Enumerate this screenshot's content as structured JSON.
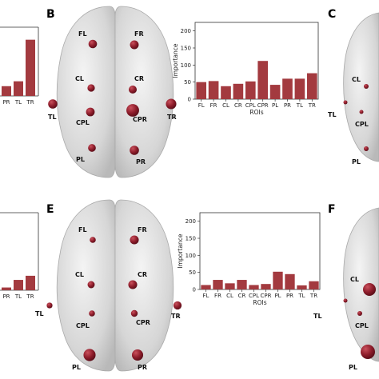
{
  "panels": {
    "B": "B",
    "C": "C",
    "E": "E",
    "F": "F"
  },
  "colors": {
    "bar": "#a33a3f",
    "node": "#8e1d2b",
    "brain": "#d9d9d9"
  },
  "chart_data": [
    {
      "id": "B-bar",
      "type": "bar",
      "categories": [
        "FL",
        "FR",
        "CL",
        "CR",
        "CPL",
        "CPR",
        "PL",
        "PR",
        "TL",
        "TR"
      ],
      "values": [
        50,
        53,
        38,
        45,
        52,
        112,
        42,
        60,
        60,
        76
      ],
      "xlabel": "ROIs",
      "ylabel": "Importance",
      "ylim": [
        0,
        225
      ],
      "yticks": [
        0,
        50,
        100,
        150,
        200
      ],
      "grid": false
    },
    {
      "id": "E-bar",
      "type": "bar",
      "categories": [
        "FL",
        "FR",
        "CL",
        "CR",
        "CPL",
        "CPR",
        "PL",
        "PR",
        "TL",
        "TR"
      ],
      "values": [
        13,
        28,
        18,
        28,
        13,
        16,
        52,
        45,
        12,
        24
      ],
      "xlabel": "ROIs",
      "ylabel": "Importance",
      "ylim": [
        0,
        225
      ],
      "yticks": [
        0,
        50,
        100,
        150,
        200
      ],
      "grid": false
    },
    {
      "id": "A-bar-partial",
      "type": "bar",
      "categories": [
        "PR",
        "TL",
        "TR"
      ],
      "values": [
        32,
        48,
        184
      ],
      "ylim": [
        0,
        225
      ]
    },
    {
      "id": "D-bar-partial",
      "type": "bar",
      "categories": [
        "PR",
        "TL",
        "TR"
      ],
      "values": [
        8,
        30,
        42
      ],
      "ylim": [
        0,
        225
      ]
    }
  ],
  "brain_B": {
    "labels": [
      "FL",
      "FR",
      "CL",
      "CR",
      "CPL",
      "CPR",
      "PL",
      "PR",
      "TL",
      "TR"
    ],
    "importance": [
      50,
      53,
      38,
      45,
      52,
      112,
      42,
      60,
      60,
      76
    ]
  },
  "brain_E": {
    "labels": [
      "FL",
      "FR",
      "CL",
      "CR",
      "CPL",
      "CPR",
      "PL",
      "PR",
      "TL",
      "TR"
    ],
    "importance": [
      13,
      28,
      18,
      28,
      13,
      16,
      52,
      45,
      12,
      24
    ]
  },
  "brain_C": {
    "labels": [
      "CL",
      "CPL",
      "TL",
      "PL"
    ]
  },
  "brain_F": {
    "labels": [
      "CL",
      "CPL",
      "TL",
      "PL"
    ]
  }
}
